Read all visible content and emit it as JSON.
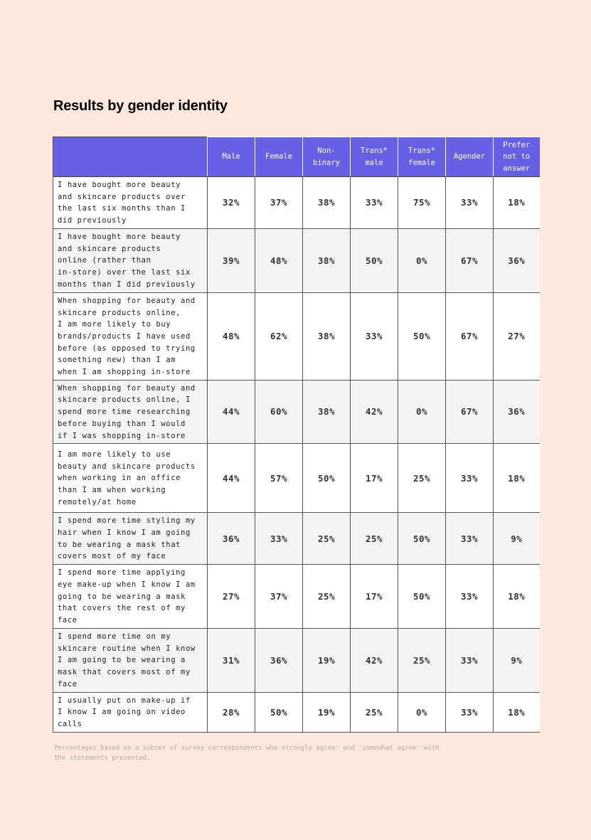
{
  "title": "Results by gender identity",
  "columns": [
    "",
    "Male",
    "Female",
    "Non-\nbinary",
    "Trans*\nmale",
    "Trans*\nfemale",
    "Agender",
    "Prefer\nnot to\nanswer"
  ],
  "rows": [
    {
      "statement": "I have bought more beauty\nand skincare products over\nthe last six months than I\ndid previously",
      "values": [
        "32%",
        "37%",
        "38%",
        "33%",
        "75%",
        "33%",
        "18%"
      ]
    },
    {
      "statement": "I have bought more beauty\nand skincare  products\nonline (rather than\nin-store) over the last six\nmonths than I did previously",
      "values": [
        "39%",
        "48%",
        "38%",
        "50%",
        "0%",
        "67%",
        "36%"
      ]
    },
    {
      "statement": "When shopping for beauty and\nskincare products online,\nI am more likely to buy\nbrands/products I have used\nbefore (as opposed to trying\nsomething new) than I am\nwhen I am shopping in-store",
      "values": [
        "48%",
        "62%",
        "38%",
        "33%",
        "50%",
        "67%",
        "27%"
      ]
    },
    {
      "statement": "When shopping for beauty and\nskincare products online, I\nspend more time researching\nbefore buying than I would\nif I was shopping in-store",
      "values": [
        "44%",
        "60%",
        "38%",
        "42%",
        "0%",
        "67%",
        "36%"
      ]
    },
    {
      "statement": "I am more likely to use\nbeauty and skincare products\nwhen working in an office\nthan I am when working\nremotely/at home",
      "values": [
        "44%",
        "57%",
        "50%",
        "17%",
        "25%",
        "33%",
        "18%"
      ]
    },
    {
      "statement": "I spend more time styling my\nhair when I know I am going\nto be wearing a mask that\ncovers most of my face",
      "values": [
        "36%",
        "33%",
        "25%",
        "25%",
        "50%",
        "33%",
        "9%"
      ]
    },
    {
      "statement": "I spend more time applying\neye make-up when I know I am\ngoing to be wearing a mask\nthat covers the rest of my\nface",
      "values": [
        "27%",
        "37%",
        "25%",
        "17%",
        "50%",
        "33%",
        "18%"
      ]
    },
    {
      "statement": "I spend more time on my\nskincare routine when I know\nI am going to be wearing a\nmask that covers most of my\nface",
      "values": [
        "31%",
        "36%",
        "19%",
        "42%",
        "25%",
        "33%",
        "9%"
      ]
    },
    {
      "statement": "I usually put on make-up if\nI know I am going on video\ncalls",
      "values": [
        "28%",
        "50%",
        "19%",
        "25%",
        "0%",
        "33%",
        "18%"
      ]
    }
  ],
  "footnote": "Percentages based on a subset of survey correspondents who strongly agree' and 'somewhat agree' with the statements presented.",
  "colors": {
    "header": "#6660e4",
    "background": "#fee8dc",
    "alt_row": "#f4f4f4"
  }
}
